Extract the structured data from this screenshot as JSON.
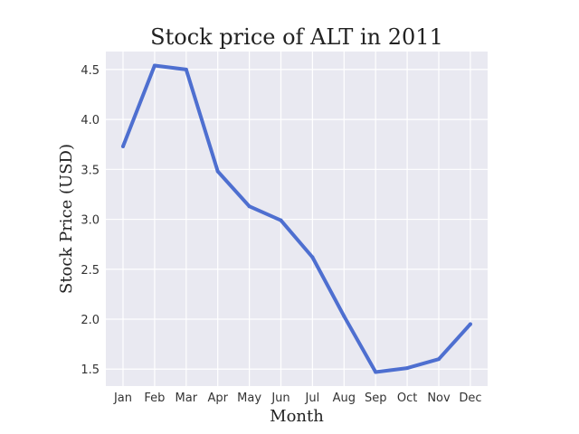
{
  "chart_data": {
    "type": "line",
    "title": "Stock price of ALT in 2011",
    "xlabel": "Month",
    "ylabel": "Stock Price (USD)",
    "categories": [
      "Jan",
      "Feb",
      "Mar",
      "Apr",
      "May",
      "Jun",
      "Jul",
      "Aug",
      "Sep",
      "Oct",
      "Nov",
      "Dec"
    ],
    "series": [
      {
        "values": [
          3.73,
          4.54,
          4.5,
          3.48,
          3.13,
          2.99,
          2.62,
          2.03,
          1.47,
          1.51,
          1.6,
          1.95
        ],
        "color": "#4e6fd0"
      }
    ],
    "yticks": [
      "1.5",
      "2.0",
      "2.5",
      "3.0",
      "3.5",
      "4.0",
      "4.5"
    ],
    "ylim": [
      1.33,
      4.68
    ],
    "grid": true,
    "legend": "none"
  }
}
